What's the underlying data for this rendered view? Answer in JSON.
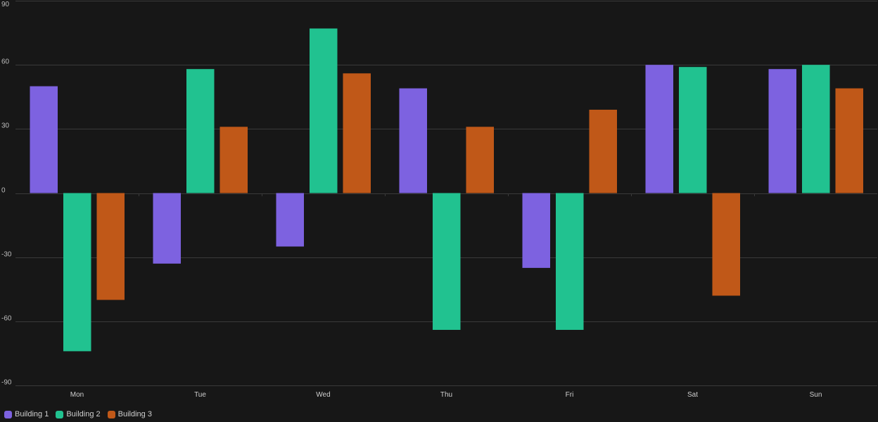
{
  "chart_data": {
    "type": "bar",
    "categories": [
      "Mon",
      "Tue",
      "Wed",
      "Thu",
      "Fri",
      "Sat",
      "Sun"
    ],
    "series": [
      {
        "name": "Building 1",
        "color": "#7d62e0",
        "values": [
          50,
          -33,
          -25,
          49,
          -35,
          60,
          58
        ]
      },
      {
        "name": "Building 2",
        "color": "#21c290",
        "values": [
          -74,
          58,
          77,
          -64,
          -64,
          59,
          60
        ]
      },
      {
        "name": "Building 3",
        "color": "#c05818",
        "values": [
          -50,
          31,
          56,
          31,
          39,
          -48,
          49
        ]
      }
    ],
    "yticks": [
      "90",
      "60",
      "30",
      "0",
      "-30",
      "-60",
      "-90"
    ],
    "ylim": [
      -90,
      90
    ],
    "grid": true,
    "legend_position": "bottom-left",
    "background": "#171717",
    "gridColor": "#3a3a3a"
  }
}
